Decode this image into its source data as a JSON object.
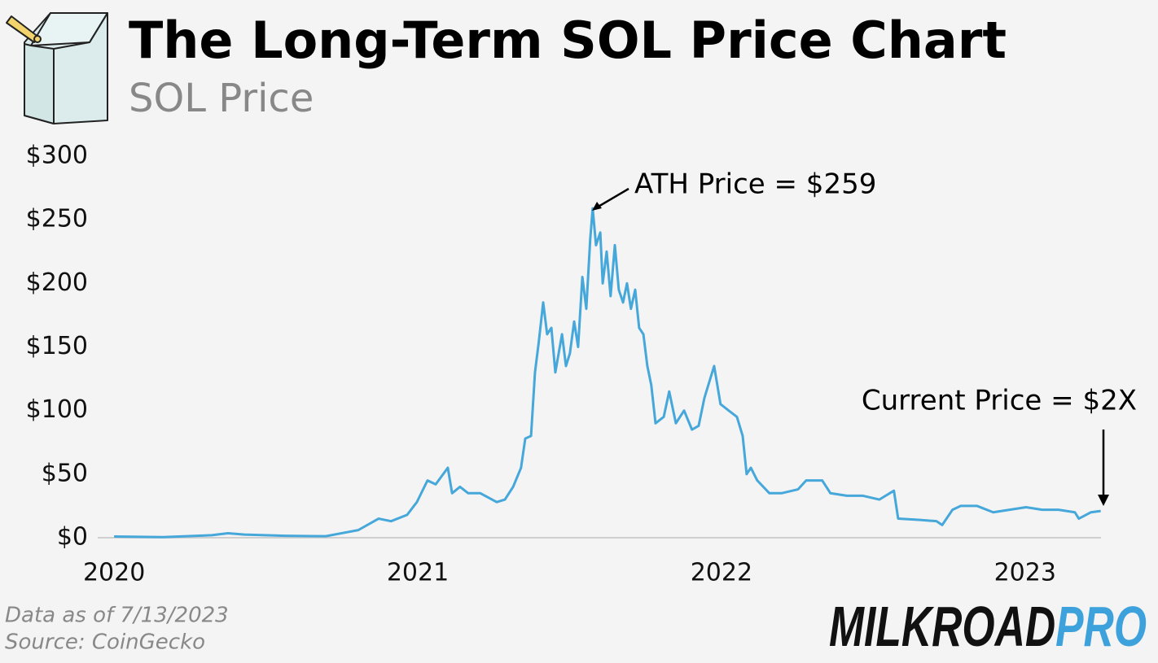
{
  "chart_data": {
    "type": "line",
    "title": "The Long-Term SOL Price Chart",
    "subtitle": "SOL Price",
    "color": "#45a7da",
    "x": [
      2020.0,
      2020.161,
      2020.322,
      2020.375,
      2020.429,
      2020.563,
      2020.697,
      2020.737,
      2020.804,
      2020.871,
      2020.912,
      2020.965,
      2020.997,
      2021.032,
      2021.059,
      2021.099,
      2021.113,
      2021.139,
      2021.166,
      2021.206,
      2021.26,
      2021.287,
      2021.314,
      2021.34,
      2021.354,
      2021.373,
      2021.386,
      2021.399,
      2021.413,
      2021.426,
      2021.44,
      2021.453,
      2021.475,
      2021.488,
      2021.501,
      2021.515,
      2021.528,
      2021.542,
      2021.555,
      2021.568,
      2021.576,
      2021.587,
      2021.601,
      2021.609,
      2021.622,
      2021.635,
      2021.649,
      2021.662,
      2021.676,
      2021.689,
      2021.702,
      2021.716,
      2021.729,
      2021.743,
      2021.756,
      2021.769,
      2021.783,
      2021.81,
      2021.828,
      2021.85,
      2021.877,
      2021.903,
      2021.925,
      2021.944,
      2021.976,
      2021.997,
      2022.024,
      2022.051,
      2022.07,
      2022.083,
      2022.097,
      2022.118,
      2022.158,
      2022.198,
      2022.252,
      2022.279,
      2022.332,
      2022.359,
      2022.413,
      2022.466,
      2022.52,
      2022.568,
      2022.582,
      2022.654,
      2022.708,
      2022.727,
      2022.761,
      2022.788,
      2022.842,
      2022.895,
      2022.949,
      2023.003,
      2023.056,
      2023.11,
      2023.164,
      2023.177,
      2023.217,
      2023.249
    ],
    "values": [
      1,
      0.5,
      2,
      3.5,
      2.5,
      1.5,
      1.2,
      3,
      6,
      15,
      13,
      18,
      28,
      45,
      42,
      55,
      35,
      40,
      35,
      35,
      28,
      30,
      40,
      55,
      78,
      80,
      130,
      155,
      185,
      160,
      165,
      130,
      160,
      135,
      145,
      170,
      150,
      205,
      180,
      235,
      259,
      230,
      240,
      200,
      225,
      190,
      230,
      195,
      185,
      200,
      180,
      195,
      165,
      160,
      135,
      120,
      90,
      95,
      115,
      90,
      100,
      85,
      88,
      110,
      135,
      105,
      100,
      95,
      80,
      50,
      55,
      45,
      35,
      35,
      38,
      45,
      45,
      35,
      33,
      33,
      30,
      37,
      15,
      14,
      13,
      10,
      22,
      25,
      25,
      20,
      22,
      24,
      22,
      22,
      20,
      15,
      20,
      21
    ],
    "xlim": [
      2019.946,
      2023.25
    ],
    "xticks": [
      2020,
      2021,
      2022,
      2023
    ],
    "ylim": [
      0,
      300
    ],
    "yticks": [
      {
        "value": 0,
        "label": "$0"
      },
      {
        "value": 50,
        "label": "$50"
      },
      {
        "value": 100,
        "label": "$100"
      },
      {
        "value": 150,
        "label": "$150"
      },
      {
        "value": 200,
        "label": "$200"
      },
      {
        "value": 250,
        "label": "$250"
      },
      {
        "value": 300,
        "label": "$300"
      }
    ],
    "annotations": [
      "ATH Price = $259",
      "Current Price = $2X"
    ],
    "notes": [
      "Data as of 7/13/2023",
      "Source: CoinGecko"
    ],
    "brand": [
      "MILKROAD",
      "PRO"
    ]
  }
}
